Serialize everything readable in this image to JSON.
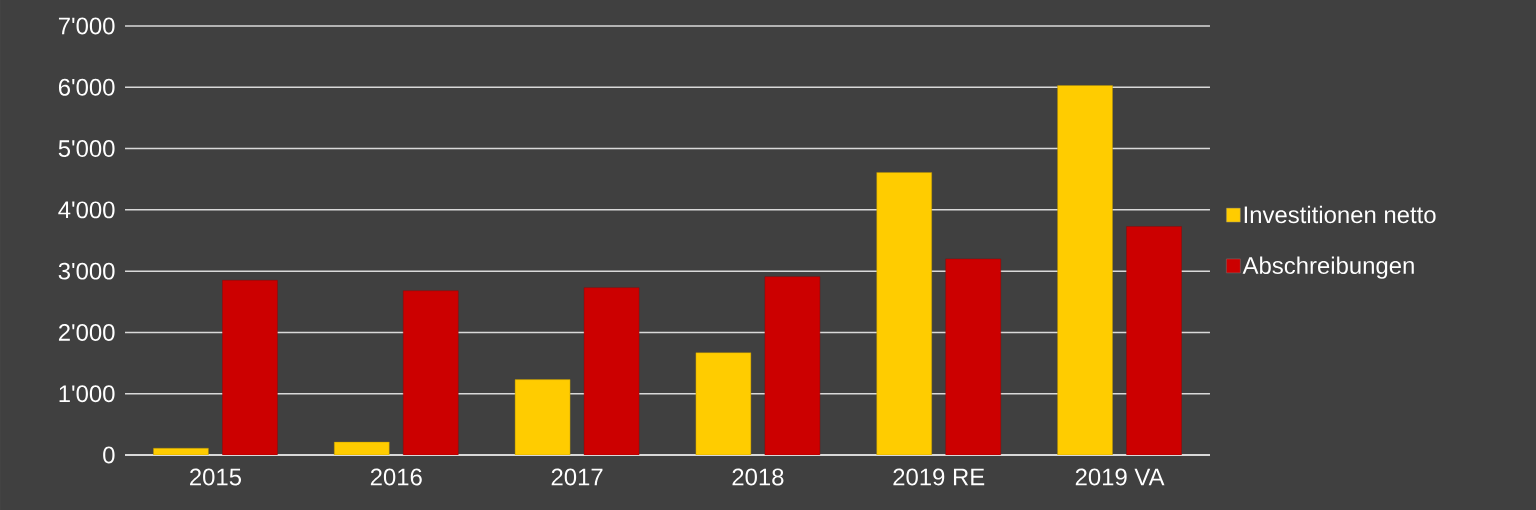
{
  "chart_data": {
    "type": "bar",
    "categories": [
      "2015",
      "2016",
      "2017",
      "2018",
      "2019 RE",
      "2019 VA"
    ],
    "series": [
      {
        "name": "Investitionen netto",
        "color": "#ffcc00",
        "values": [
          110,
          210,
          1230,
          1670,
          4610,
          6030
        ]
      },
      {
        "name": "Abschreibungen",
        "color": "#cc0000",
        "values": [
          2850,
          2680,
          2730,
          2910,
          3200,
          3730
        ]
      }
    ],
    "ylim": [
      0,
      7000
    ],
    "yticks": [
      {
        "value": 0,
        "label": "0"
      },
      {
        "value": 1000,
        "label": "1'000"
      },
      {
        "value": 2000,
        "label": "2'000"
      },
      {
        "value": 3000,
        "label": "3'000"
      },
      {
        "value": 4000,
        "label": "4'000"
      },
      {
        "value": 5000,
        "label": "5'000"
      },
      {
        "value": 6000,
        "label": "6'000"
      },
      {
        "value": 7000,
        "label": "7'000"
      }
    ],
    "grid": "y",
    "legend": "right"
  }
}
